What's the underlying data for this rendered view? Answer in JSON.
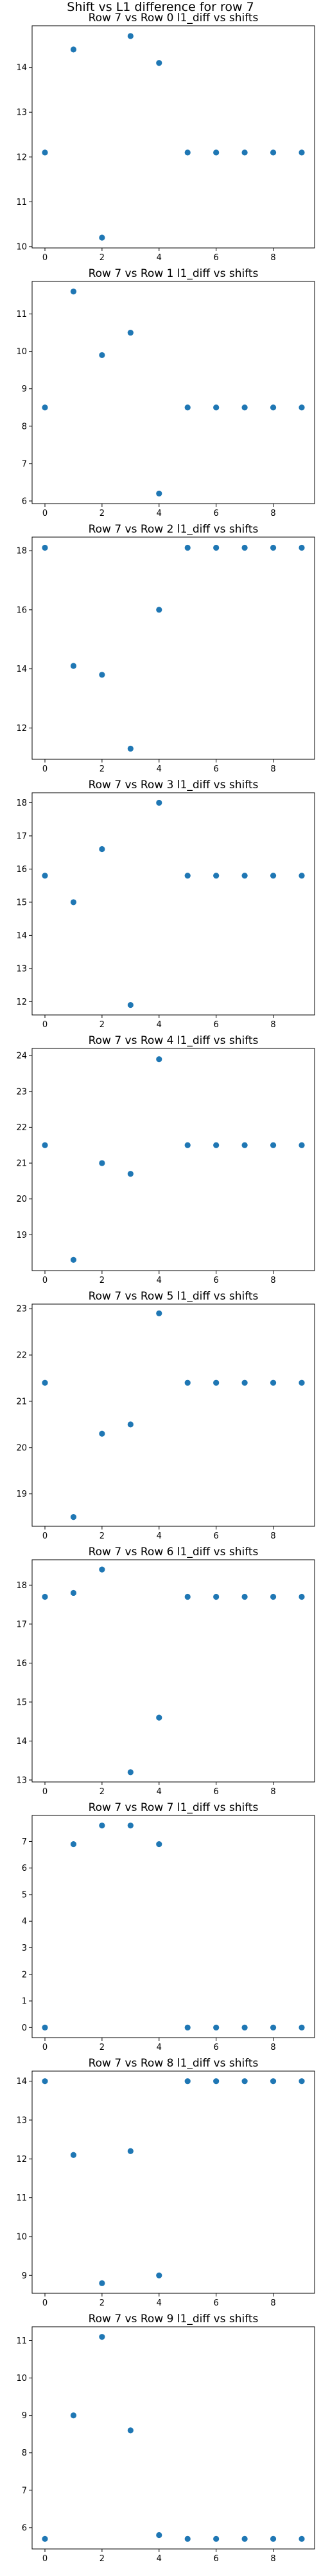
{
  "suptitle": "Shift vs L1 difference for row 7",
  "chart_data": [
    {
      "type": "scatter",
      "title": "Row 7 vs Row 0 l1_diff vs shifts",
      "x": [
        0,
        1,
        2,
        3,
        4,
        5,
        6,
        7,
        8,
        9
      ],
      "y": [
        12.1,
        14.4,
        10.2,
        14.7,
        14.1,
        12.1,
        12.1,
        12.1,
        12.1,
        12.1
      ],
      "xlim": [
        -0.45,
        9.45
      ],
      "ylim": [
        9.97,
        14.93
      ],
      "xticks": [
        0,
        2,
        4,
        6,
        8
      ],
      "yticks": [
        10,
        11,
        12,
        13,
        14
      ],
      "grid": false
    },
    {
      "type": "scatter",
      "title": "Row 7 vs Row 1 l1_diff vs shifts",
      "x": [
        0,
        1,
        2,
        3,
        4,
        5,
        6,
        7,
        8,
        9
      ],
      "y": [
        8.5,
        11.6,
        9.9,
        10.5,
        6.2,
        8.5,
        8.5,
        8.5,
        8.5,
        8.5
      ],
      "xlim": [
        -0.45,
        9.45
      ],
      "ylim": [
        5.93,
        11.87
      ],
      "xticks": [
        0,
        2,
        4,
        6,
        8
      ],
      "yticks": [
        6,
        7,
        8,
        9,
        10,
        11
      ],
      "grid": false
    },
    {
      "type": "scatter",
      "title": "Row 7 vs Row 2 l1_diff vs shifts",
      "x": [
        0,
        1,
        2,
        3,
        4,
        5,
        6,
        7,
        8,
        9
      ],
      "y": [
        18.1,
        14.1,
        13.8,
        11.3,
        16.0,
        18.1,
        18.1,
        18.1,
        18.1,
        18.1
      ],
      "xlim": [
        -0.45,
        9.45
      ],
      "ylim": [
        10.94,
        18.46
      ],
      "xticks": [
        0,
        2,
        4,
        6,
        8
      ],
      "yticks": [
        12,
        14,
        16,
        18
      ],
      "grid": false
    },
    {
      "type": "scatter",
      "title": "Row 7 vs Row 3 l1_diff vs shifts",
      "x": [
        0,
        1,
        2,
        3,
        4,
        5,
        6,
        7,
        8,
        9
      ],
      "y": [
        15.8,
        15.0,
        16.6,
        11.9,
        18.0,
        15.8,
        15.8,
        15.8,
        15.8,
        15.8
      ],
      "xlim": [
        -0.45,
        9.45
      ],
      "ylim": [
        11.6,
        18.3
      ],
      "xticks": [
        0,
        2,
        4,
        6,
        8
      ],
      "yticks": [
        12,
        13,
        14,
        15,
        16,
        17,
        18
      ],
      "grid": false
    },
    {
      "type": "scatter",
      "title": "Row 7 vs Row 4 l1_diff vs shifts",
      "x": [
        0,
        1,
        2,
        3,
        4,
        5,
        6,
        7,
        8,
        9
      ],
      "y": [
        21.5,
        18.3,
        21.0,
        20.7,
        23.9,
        21.5,
        21.5,
        21.5,
        21.5,
        21.5
      ],
      "xlim": [
        -0.45,
        9.45
      ],
      "ylim": [
        18.0,
        24.2
      ],
      "xticks": [
        0,
        2,
        4,
        6,
        8
      ],
      "yticks": [
        19,
        20,
        21,
        22,
        23,
        24
      ],
      "grid": false
    },
    {
      "type": "scatter",
      "title": "Row 7 vs Row 5 l1_diff vs shifts",
      "x": [
        0,
        1,
        2,
        3,
        4,
        5,
        6,
        7,
        8,
        9
      ],
      "y": [
        21.4,
        18.5,
        20.3,
        20.5,
        22.9,
        21.4,
        21.4,
        21.4,
        21.4,
        21.4
      ],
      "xlim": [
        -0.45,
        9.45
      ],
      "ylim": [
        18.3,
        23.1
      ],
      "xticks": [
        0,
        2,
        4,
        6,
        8
      ],
      "yticks": [
        19,
        20,
        21,
        22,
        23
      ],
      "grid": false
    },
    {
      "type": "scatter",
      "title": "Row 7 vs Row 6 l1_diff vs shifts",
      "x": [
        0,
        1,
        2,
        3,
        4,
        5,
        6,
        7,
        8,
        9
      ],
      "y": [
        17.7,
        17.8,
        18.4,
        13.2,
        14.6,
        17.7,
        17.7,
        17.7,
        17.7,
        17.7
      ],
      "xlim": [
        -0.45,
        9.45
      ],
      "ylim": [
        12.95,
        18.65
      ],
      "xticks": [
        0,
        2,
        4,
        6,
        8
      ],
      "yticks": [
        13,
        14,
        15,
        16,
        17,
        18
      ],
      "grid": false
    },
    {
      "type": "scatter",
      "title": "Row 7 vs Row 7 l1_diff vs shifts",
      "x": [
        0,
        1,
        2,
        3,
        4,
        5,
        6,
        7,
        8,
        9
      ],
      "y": [
        0.0,
        6.9,
        7.6,
        7.6,
        6.9,
        0.0,
        0.0,
        0.0,
        0.0,
        0.0
      ],
      "xlim": [
        -0.45,
        9.45
      ],
      "ylim": [
        -0.38,
        7.98
      ],
      "xticks": [
        0,
        2,
        4,
        6,
        8
      ],
      "yticks": [
        0,
        1,
        2,
        3,
        4,
        5,
        6,
        7
      ],
      "grid": false
    },
    {
      "type": "scatter",
      "title": "Row 7 vs Row 8 l1_diff vs shifts",
      "x": [
        0,
        1,
        2,
        3,
        4,
        5,
        6,
        7,
        8,
        9
      ],
      "y": [
        14.0,
        12.1,
        8.8,
        12.2,
        9.0,
        14.0,
        14.0,
        14.0,
        14.0,
        14.0
      ],
      "xlim": [
        -0.45,
        9.45
      ],
      "ylim": [
        8.54,
        14.26
      ],
      "xticks": [
        0,
        2,
        4,
        6,
        8
      ],
      "yticks": [
        9,
        10,
        11,
        12,
        13,
        14
      ],
      "grid": false
    },
    {
      "type": "scatter",
      "title": "Row 7 vs Row 9 l1_diff vs shifts",
      "x": [
        0,
        1,
        2,
        3,
        4,
        5,
        6,
        7,
        8,
        9
      ],
      "y": [
        5.7,
        9.0,
        11.1,
        8.6,
        5.8,
        5.7,
        5.7,
        5.7,
        5.7,
        5.7
      ],
      "xlim": [
        -0.45,
        9.45
      ],
      "ylim": [
        5.43,
        11.37
      ],
      "xticks": [
        0,
        2,
        4,
        6,
        8
      ],
      "yticks": [
        6,
        7,
        8,
        9,
        10,
        11
      ],
      "grid": false
    }
  ]
}
